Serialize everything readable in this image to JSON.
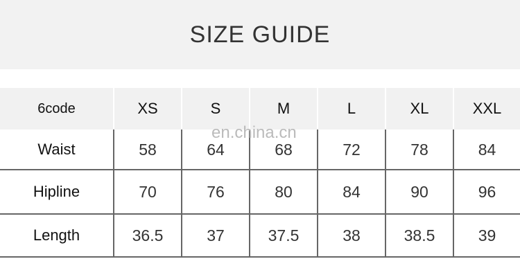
{
  "title": "SIZE GUIDE",
  "watermark": "en.china.cn",
  "table": {
    "headers": [
      "6code",
      "XS",
      "S",
      "M",
      "L",
      "XL",
      "XXL"
    ],
    "rows": [
      {
        "label": "Waist",
        "values": [
          "58",
          "64",
          "68",
          "72",
          "78",
          "84"
        ]
      },
      {
        "label": "Hipline",
        "values": [
          "70",
          "76",
          "80",
          "84",
          "90",
          "96"
        ]
      },
      {
        "label": "Length",
        "values": [
          "36.5",
          "37",
          "37.5",
          "38",
          "38.5",
          "39"
        ]
      }
    ]
  }
}
